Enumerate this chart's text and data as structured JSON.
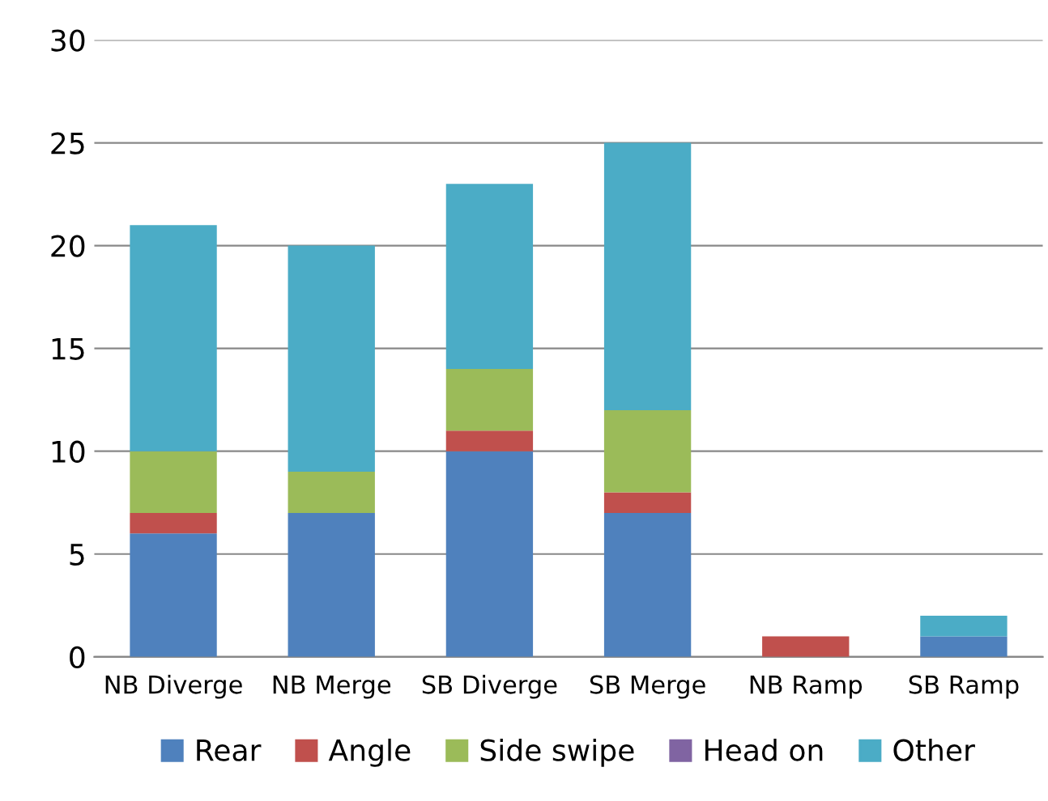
{
  "chart_data": {
    "type": "bar",
    "stacked": true,
    "categories": [
      "NB Diverge",
      "NB Merge",
      "SB Diverge",
      "SB Merge",
      "NB Ramp",
      "SB Ramp"
    ],
    "series": [
      {
        "name": "Rear",
        "color": "#4f81bd",
        "values": [
          6,
          7,
          10,
          7,
          0,
          1
        ]
      },
      {
        "name": "Angle",
        "color": "#c0504d",
        "values": [
          1,
          0,
          1,
          1,
          1,
          0
        ]
      },
      {
        "name": "Side swipe",
        "color": "#9bbb59",
        "values": [
          3,
          2,
          3,
          4,
          0,
          0
        ]
      },
      {
        "name": "Head on",
        "color": "#8064a2",
        "values": [
          0,
          0,
          0,
          0,
          0,
          0
        ]
      },
      {
        "name": "Other",
        "color": "#4bacc6",
        "values": [
          11,
          11,
          9,
          13,
          0,
          1
        ]
      }
    ],
    "ylim": [
      0,
      30
    ],
    "yticks": [
      0,
      5,
      10,
      15,
      20,
      25,
      30
    ],
    "grid": "y",
    "legend": "bottom"
  }
}
